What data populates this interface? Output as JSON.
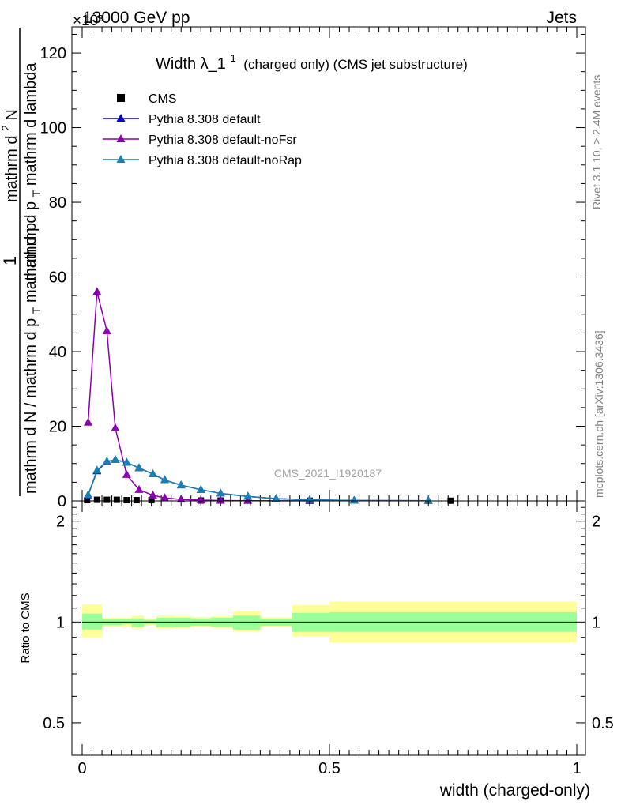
{
  "header": {
    "left": "13000 GeV pp",
    "right": "Jets",
    "exponent": "×10³"
  },
  "chart_data": [
    {
      "type": "line",
      "panel": "main",
      "title": {
        "main": "Width λ_1",
        "sup": "1",
        "suffix": "(charged only) (CMS jet substructure)"
      },
      "ylabel": {
        "line1": "1",
        "line2_a": "mathrm d N / mathrm d p",
        "line2_sub": "T",
        "line2_b": "mathrm d p",
        "line3_a": "mathrm d",
        "line3_sup": "2",
        "line3_b": "N",
        "line4_a": "mathrm d p",
        "line4_sub": "T",
        "line4_b": " mathrm d lambda"
      },
      "xlim": [
        0,
        1
      ],
      "ylim": [
        0,
        127
      ],
      "y_ticks": [
        0,
        20,
        40,
        60,
        80,
        100,
        120
      ],
      "y_scale_label": "×10³",
      "legend_position": "top-left",
      "series": [
        {
          "name": "CMS",
          "marker": "square",
          "color": "#000000",
          "points": [
            [
              0.01,
              0.2
            ],
            [
              0.03,
              0.3
            ],
            [
              0.05,
              0.3
            ],
            [
              0.07,
              0.3
            ],
            [
              0.09,
              0.2
            ],
            [
              0.11,
              0.2
            ],
            [
              0.14,
              0.2
            ],
            [
              0.24,
              0.1
            ],
            [
              0.28,
              0.1
            ],
            [
              0.46,
              0.05
            ],
            [
              0.745,
              0.05
            ]
          ]
        },
        {
          "name": "Pythia 8.308 default",
          "marker": "triangle",
          "color": "#0000cc",
          "points": [
            [
              0.012,
              1.5
            ],
            [
              0.03,
              8.0
            ],
            [
              0.05,
              10.5
            ],
            [
              0.067,
              11.0
            ],
            [
              0.09,
              10.3
            ],
            [
              0.115,
              8.8
            ],
            [
              0.143,
              7.2
            ],
            [
              0.167,
              5.6
            ],
            [
              0.2,
              4.2
            ],
            [
              0.24,
              3.0
            ],
            [
              0.28,
              2.0
            ],
            [
              0.335,
              1.2
            ],
            [
              0.392,
              0.6
            ],
            [
              0.46,
              0.3
            ],
            [
              0.55,
              0.1
            ],
            [
              0.7,
              0.05
            ]
          ]
        },
        {
          "name": "Pythia 8.308 default-noFsr",
          "marker": "triangle",
          "color": "#8b00b0",
          "points": [
            [
              0.012,
              21.0
            ],
            [
              0.03,
              56.0
            ],
            [
              0.05,
              45.5
            ],
            [
              0.067,
              19.5
            ],
            [
              0.09,
              7.0
            ],
            [
              0.115,
              3.0
            ],
            [
              0.143,
              1.5
            ],
            [
              0.167,
              0.8
            ],
            [
              0.2,
              0.4
            ],
            [
              0.24,
              0.2
            ],
            [
              0.28,
              0.1
            ],
            [
              0.335,
              0.05
            ],
            [
              0.46,
              0.02
            ]
          ]
        },
        {
          "name": "Pythia 8.308 default-noRap",
          "marker": "triangle",
          "color": "#1a80b3",
          "points": [
            [
              0.012,
              1.6
            ],
            [
              0.03,
              8.2
            ],
            [
              0.05,
              10.6
            ],
            [
              0.067,
              11.0
            ],
            [
              0.09,
              10.3
            ],
            [
              0.115,
              8.8
            ],
            [
              0.143,
              7.2
            ],
            [
              0.167,
              5.6
            ],
            [
              0.2,
              4.2
            ],
            [
              0.24,
              3.0
            ],
            [
              0.28,
              2.0
            ],
            [
              0.335,
              1.2
            ],
            [
              0.392,
              0.6
            ],
            [
              0.46,
              0.3
            ],
            [
              0.55,
              0.1
            ],
            [
              0.7,
              0.05
            ]
          ]
        }
      ]
    },
    {
      "type": "area",
      "panel": "ratio",
      "ylabel": "Ratio to CMS",
      "xlabel": "width (charged-only)",
      "scale": "log",
      "ylim": [
        0.4,
        2.3
      ],
      "y_ticks": [
        0.5,
        1,
        2
      ],
      "y_tick_labels": [
        "0.5",
        "1",
        "2"
      ],
      "x_ticks": [
        0,
        0.5,
        1
      ],
      "x_tick_labels": [
        "0",
        "0.5",
        "1"
      ],
      "reference_line": 1,
      "bins": [
        {
          "x0": 0.0,
          "x1": 0.04,
          "inner": [
            0.95,
            1.06
          ],
          "outer": [
            0.9,
            1.13
          ]
        },
        {
          "x0": 0.04,
          "x1": 0.055,
          "inner": [
            0.98,
            1.02
          ],
          "outer": [
            0.97,
            1.03
          ]
        },
        {
          "x0": 0.055,
          "x1": 0.08,
          "inner": [
            0.98,
            1.02
          ],
          "outer": [
            0.97,
            1.03
          ]
        },
        {
          "x0": 0.08,
          "x1": 0.1,
          "inner": [
            0.985,
            1.02
          ],
          "outer": [
            0.97,
            1.03
          ]
        },
        {
          "x0": 0.1,
          "x1": 0.125,
          "inner": [
            0.965,
            1.025
          ],
          "outer": [
            0.955,
            1.045
          ]
        },
        {
          "x0": 0.125,
          "x1": 0.15,
          "inner": [
            0.985,
            1.015
          ],
          "outer": [
            0.975,
            1.025
          ]
        },
        {
          "x0": 0.15,
          "x1": 0.185,
          "inner": [
            0.965,
            1.03
          ],
          "outer": [
            0.955,
            1.045
          ]
        },
        {
          "x0": 0.185,
          "x1": 0.22,
          "inner": [
            0.97,
            1.03
          ],
          "outer": [
            0.96,
            1.04
          ]
        },
        {
          "x0": 0.22,
          "x1": 0.26,
          "inner": [
            0.975,
            1.025
          ],
          "outer": [
            0.965,
            1.035
          ]
        },
        {
          "x0": 0.26,
          "x1": 0.305,
          "inner": [
            0.97,
            1.03
          ],
          "outer": [
            0.96,
            1.04
          ]
        },
        {
          "x0": 0.305,
          "x1": 0.36,
          "inner": [
            0.95,
            1.045
          ],
          "outer": [
            0.935,
            1.075
          ]
        },
        {
          "x0": 0.36,
          "x1": 0.425,
          "inner": [
            0.975,
            1.02
          ],
          "outer": [
            0.965,
            1.035
          ]
        },
        {
          "x0": 0.425,
          "x1": 0.5,
          "inner": [
            0.935,
            1.065
          ],
          "outer": [
            0.905,
            1.125
          ]
        },
        {
          "x0": 0.5,
          "x1": 1.0,
          "inner": [
            0.935,
            1.07
          ],
          "outer": [
            0.87,
            1.15
          ]
        }
      ]
    }
  ],
  "side_text": {
    "top": "Rivet 3.1.10, ≥ 2.4M events",
    "bottom": "mcplots.cern.ch [arXiv:1306.3436]"
  },
  "watermark": "CMS_2021_I1920187"
}
